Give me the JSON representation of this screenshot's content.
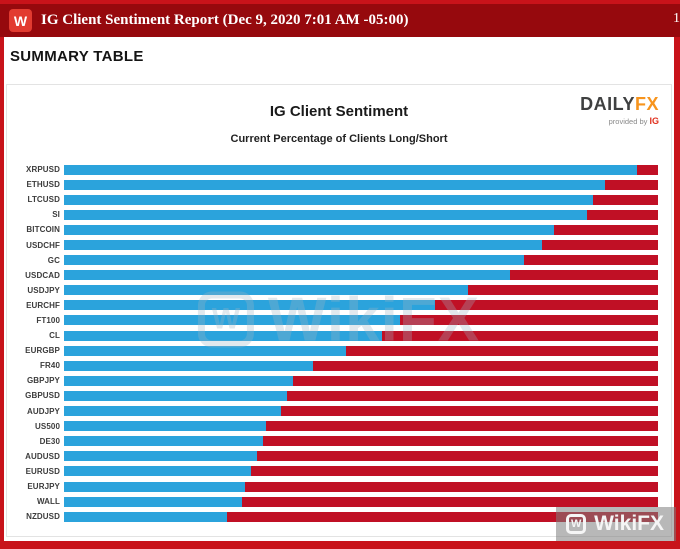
{
  "topbar": {
    "title": "IG Client Sentiment Report (Dec 9, 2020 7:01 AM -05:00)",
    "page_number": "1",
    "logo_glyph": "W"
  },
  "section_title": "SUMMARY TABLE",
  "branding": {
    "logo_dark": "DAILY",
    "logo_accent": "FX",
    "provided_by": "provided by",
    "provider": "IG"
  },
  "watermark": {
    "center_text": "WikiFX",
    "center_icon_glyph": "W",
    "corner_text": "WikiFX",
    "corner_icon_glyph": "W"
  },
  "colors": {
    "long_blue": "#2ba3dc",
    "short_red": "#c01025",
    "topbar_red": "#96090d",
    "frame_red": "#c8131a",
    "accent_orange": "#f7941d"
  },
  "chart_data": {
    "type": "bar",
    "orientation": "horizontal",
    "stacked": true,
    "title": "IG Client Sentiment",
    "subtitle": "Current Percentage of Clients Long/Short",
    "xlim": [
      0,
      100
    ],
    "legend": "none",
    "categories": [
      "XRPUSD",
      "ETHUSD",
      "LTCUSD",
      "SI",
      "BITCOIN",
      "USDCHF",
      "GC",
      "USDCAD",
      "USDJPY",
      "EURCHF",
      "FT100",
      "CL",
      "EURGBP",
      "FR40",
      "GBPJPY",
      "GBPUSD",
      "AUDJPY",
      "US500",
      "DE30",
      "AUDUSD",
      "EURUSD",
      "EURJPY",
      "WALL",
      "NZDUSD"
    ],
    "series": [
      {
        "name": "Long",
        "color": "#2ba3dc",
        "values": [
          96.5,
          91.0,
          89.0,
          88.0,
          82.5,
          80.5,
          77.5,
          75.0,
          68.0,
          62.5,
          56.5,
          53.5,
          47.5,
          42.0,
          38.5,
          37.5,
          36.5,
          34.0,
          33.5,
          32.5,
          31.5,
          30.5,
          30.0,
          27.5
        ]
      },
      {
        "name": "Short",
        "color": "#c01025",
        "values": [
          3.5,
          9.0,
          11.0,
          12.0,
          17.5,
          19.5,
          22.5,
          25.0,
          32.0,
          37.5,
          43.5,
          46.5,
          52.5,
          58.0,
          61.5,
          62.5,
          63.5,
          66.0,
          66.5,
          67.5,
          68.5,
          69.5,
          70.0,
          72.5
        ]
      }
    ]
  }
}
